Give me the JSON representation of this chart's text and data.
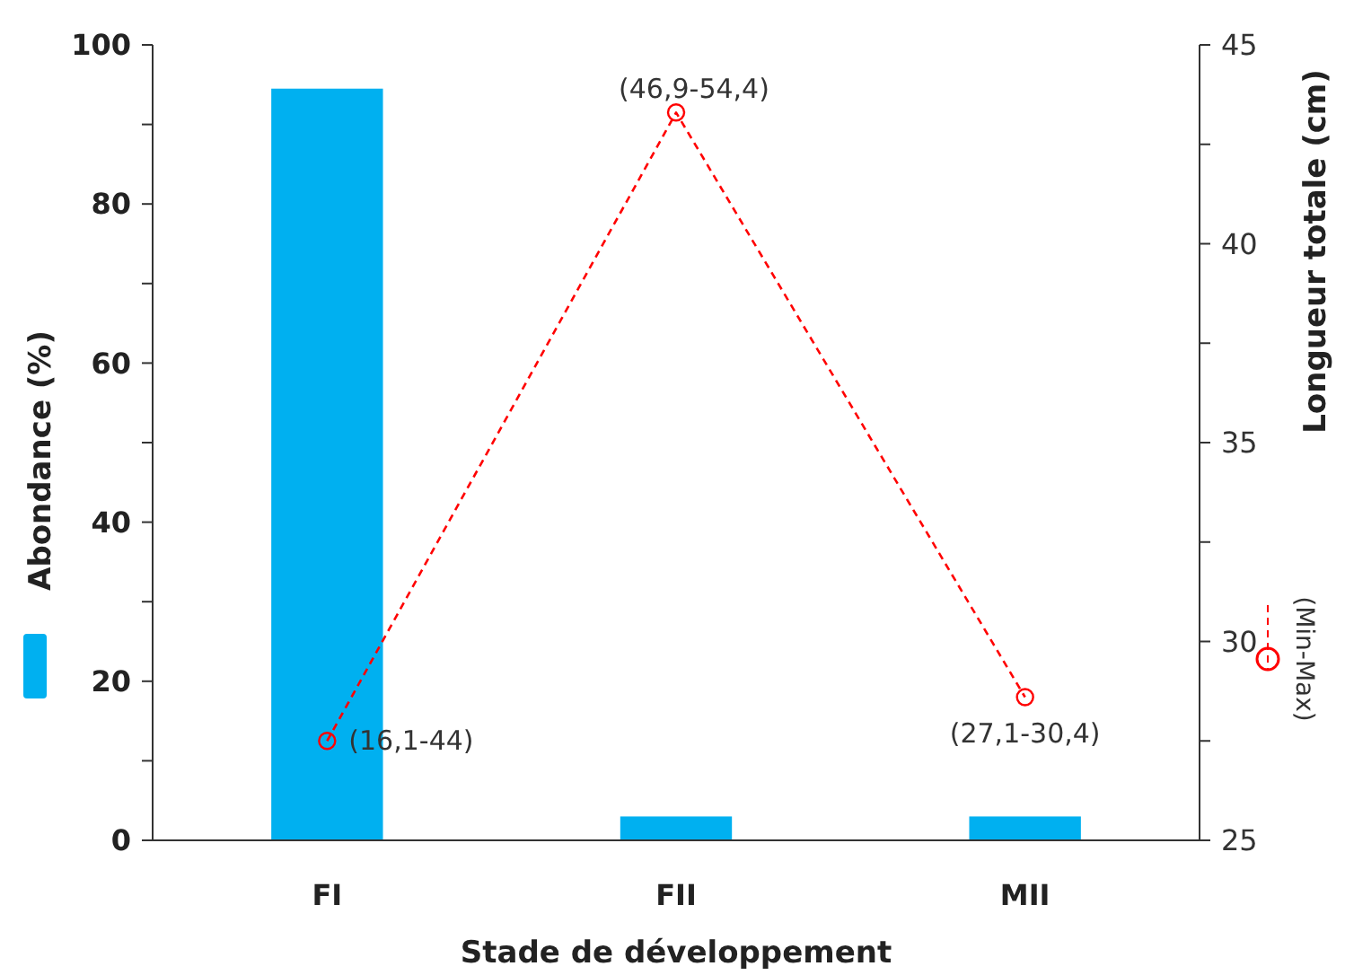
{
  "chart_data": {
    "type": "bar",
    "categories": [
      "FI",
      "FII",
      "MII"
    ],
    "xlabel": "Stade de développement",
    "ylabel": "Abondance (%)",
    "y2label": "Longueur totale (cm)",
    "ylim": [
      0,
      100
    ],
    "yticks": [
      0,
      {
        "value": 10,
        "label": null
      },
      20,
      {
        "value": 30,
        "label": null
      },
      40,
      {
        "value": 50,
        "label": null
      },
      60,
      {
        "value": 70,
        "label": null
      },
      80,
      {
        "value": 90,
        "label": null
      },
      100
    ],
    "y2lim": [
      25,
      45
    ],
    "y2ticks": [
      25,
      {
        "value": 27.5,
        "label": null
      },
      30,
      {
        "value": 32.5,
        "label": null
      },
      35,
      {
        "value": 37.5,
        "label": null
      },
      40,
      {
        "value": 42.5,
        "label": null
      },
      45
    ],
    "legend": "right",
    "grid": false,
    "series": [
      {
        "color": "#00b0f0",
        "values": [
          94.5,
          3,
          3
        ]
      },
      {
        "type": "line",
        "name": "(Min-Max)",
        "axis": "y2",
        "color": "#ff0000",
        "marker": "circle",
        "line_style": "dashed",
        "values": [
          27.5,
          43.3,
          28.6
        ],
        "value_labels": [
          "(16,1-44)",
          "(46,9-54,4)",
          "(27,1-30,4)"
        ]
      }
    ]
  }
}
